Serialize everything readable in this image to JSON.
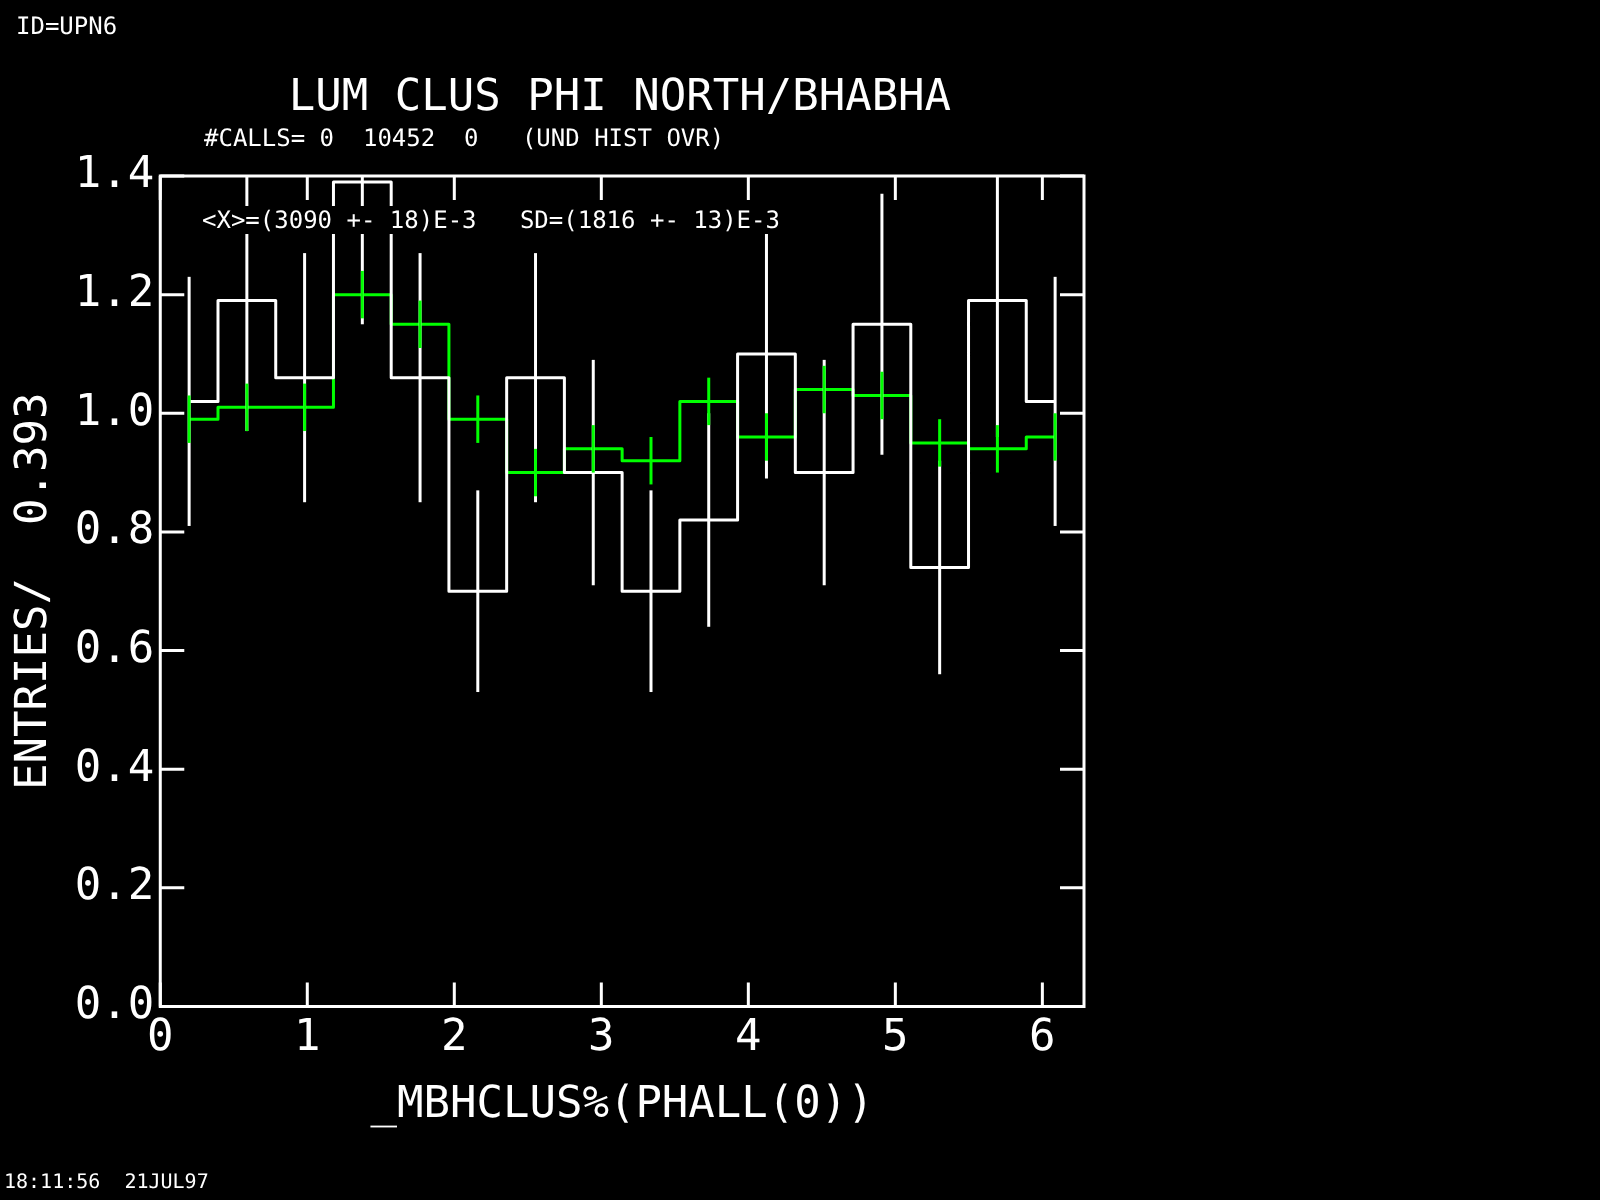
{
  "chart_data": {
    "type": "step",
    "title": "LUM CLUS PHI NORTH/BHABHA",
    "subtitle": "#CALLS= 0  10452  0   (UND HIST OVR)",
    "xlabel": "_MBHCLUS%(PHALL(0))",
    "ylabel": "ENTRIES/  0.393",
    "annotations": [
      "ID=UPN6",
      "<X>=(3090 +- 18)E-3   SD=(1816 +- 13)E-3",
      "18:11:56  21JUL97"
    ],
    "x": [
      0.1963,
      0.589,
      0.9817,
      1.3744,
      1.7671,
      2.1598,
      2.5525,
      2.9452,
      3.3379,
      3.7306,
      4.1233,
      4.516,
      4.9087,
      5.3014,
      5.6941,
      6.0868
    ],
    "series": [
      {
        "color": "#ffffff",
        "values": [
          1.02,
          1.19,
          1.06,
          1.39,
          1.06,
          0.7,
          1.06,
          0.9,
          0.7,
          0.82,
          1.1,
          0.9,
          1.15,
          0.74,
          1.19,
          1.02
        ],
        "errors": [
          0.21,
          [
            0.97,
            1.4
          ],
          0.21,
          [
            1.15,
            1.4
          ],
          0.21,
          0.17,
          0.21,
          0.19,
          0.17,
          0.18,
          0.21,
          0.19,
          0.22,
          0.18,
          [
            0.96,
            1.4
          ],
          0.21
        ]
      },
      {
        "color": "#00ff00",
        "values": [
          0.99,
          1.01,
          1.01,
          1.2,
          1.15,
          0.99,
          0.9,
          0.94,
          0.92,
          1.02,
          0.96,
          1.04,
          1.03,
          0.95,
          0.94,
          0.96
        ],
        "errors": [
          0.04,
          0.04,
          0.04,
          0.04,
          0.04,
          0.04,
          0.04,
          0.04,
          0.04,
          0.04,
          0.04,
          0.04,
          0.04,
          0.04,
          0.04,
          0.04
        ]
      }
    ],
    "xlim": [
      0,
      6.2832
    ],
    "xticks": [
      0,
      1,
      2,
      3,
      4,
      5,
      6
    ],
    "ylim": [
      0,
      1.4
    ],
    "yticks": [
      {
        "value": 0,
        "label": "0.0"
      },
      {
        "value": 0.2,
        "label": "0.2"
      },
      {
        "value": 0.4,
        "label": "0.4"
      },
      {
        "value": 0.6,
        "label": "0.6"
      },
      {
        "value": 0.8,
        "label": "0.8"
      },
      {
        "value": 1,
        "label": "1.0"
      },
      {
        "value": 1.2,
        "label": "1.2"
      },
      {
        "value": 1.4,
        "label": "1.4"
      }
    ],
    "grid": false,
    "legend": false
  }
}
